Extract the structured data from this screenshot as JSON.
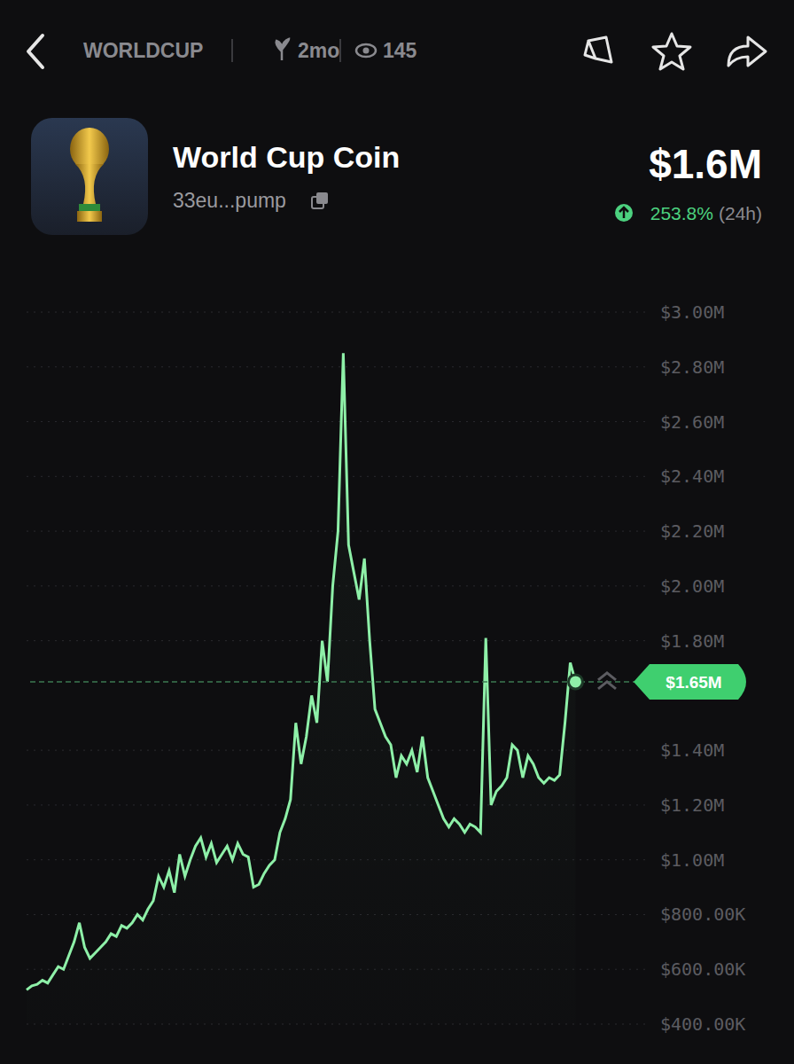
{
  "header": {
    "ticker": "WORLDCUP",
    "age": "2mo",
    "views": "145"
  },
  "token": {
    "name": "World Cup Coin",
    "address": "33eu...pump",
    "market_cap": "$1.6M",
    "change": "253.8%",
    "change_period": "(24h)"
  },
  "chart_data": {
    "type": "line",
    "color": "#8ef0a8",
    "grid": true,
    "tick_labels": "y",
    "ylim": [
      400000,
      3000000
    ],
    "yticks": [
      {
        "value": 400000,
        "label": "$400.00K"
      },
      {
        "value": 600000,
        "label": "$600.00K"
      },
      {
        "value": 800000,
        "label": "$800.00K"
      },
      {
        "value": 1000000,
        "label": "$1.00M"
      },
      {
        "value": 1200000,
        "label": "$1.20M"
      },
      {
        "value": 1400000,
        "label": "$1.40M"
      },
      {
        "value": 1800000,
        "label": "$1.80M"
      },
      {
        "value": 2000000,
        "label": "$2.00M"
      },
      {
        "value": 2200000,
        "label": "$2.20M"
      },
      {
        "value": 2400000,
        "label": "$2.40M"
      },
      {
        "value": 2600000,
        "label": "$2.60M"
      },
      {
        "value": 2800000,
        "label": "$2.80M"
      },
      {
        "value": 3000000,
        "label": "$3.00M"
      }
    ],
    "current": {
      "value": 1650000,
      "label": "$1.65M"
    },
    "values": [
      525000,
      540000,
      545000,
      560000,
      550000,
      580000,
      610000,
      600000,
      650000,
      700000,
      770000,
      680000,
      640000,
      660000,
      680000,
      700000,
      730000,
      720000,
      760000,
      750000,
      770000,
      800000,
      780000,
      820000,
      850000,
      940000,
      900000,
      960000,
      880000,
      1020000,
      940000,
      1000000,
      1050000,
      1080000,
      1010000,
      1060000,
      990000,
      1020000,
      1050000,
      1000000,
      1060000,
      1020000,
      1010000,
      900000,
      910000,
      950000,
      980000,
      1000000,
      1100000,
      1150000,
      1220000,
      1500000,
      1350000,
      1450000,
      1600000,
      1500000,
      1800000,
      1650000,
      2000000,
      2200000,
      2850000,
      2150000,
      2050000,
      1950000,
      2100000,
      1800000,
      1550000,
      1500000,
      1450000,
      1420000,
      1300000,
      1380000,
      1350000,
      1400000,
      1320000,
      1450000,
      1300000,
      1250000,
      1200000,
      1150000,
      1120000,
      1150000,
      1130000,
      1100000,
      1130000,
      1120000,
      1100000,
      1810000,
      1200000,
      1250000,
      1270000,
      1300000,
      1420000,
      1400000,
      1300000,
      1380000,
      1350000,
      1300000,
      1280000,
      1300000,
      1290000,
      1310000,
      1500000,
      1720000,
      1650000
    ]
  }
}
